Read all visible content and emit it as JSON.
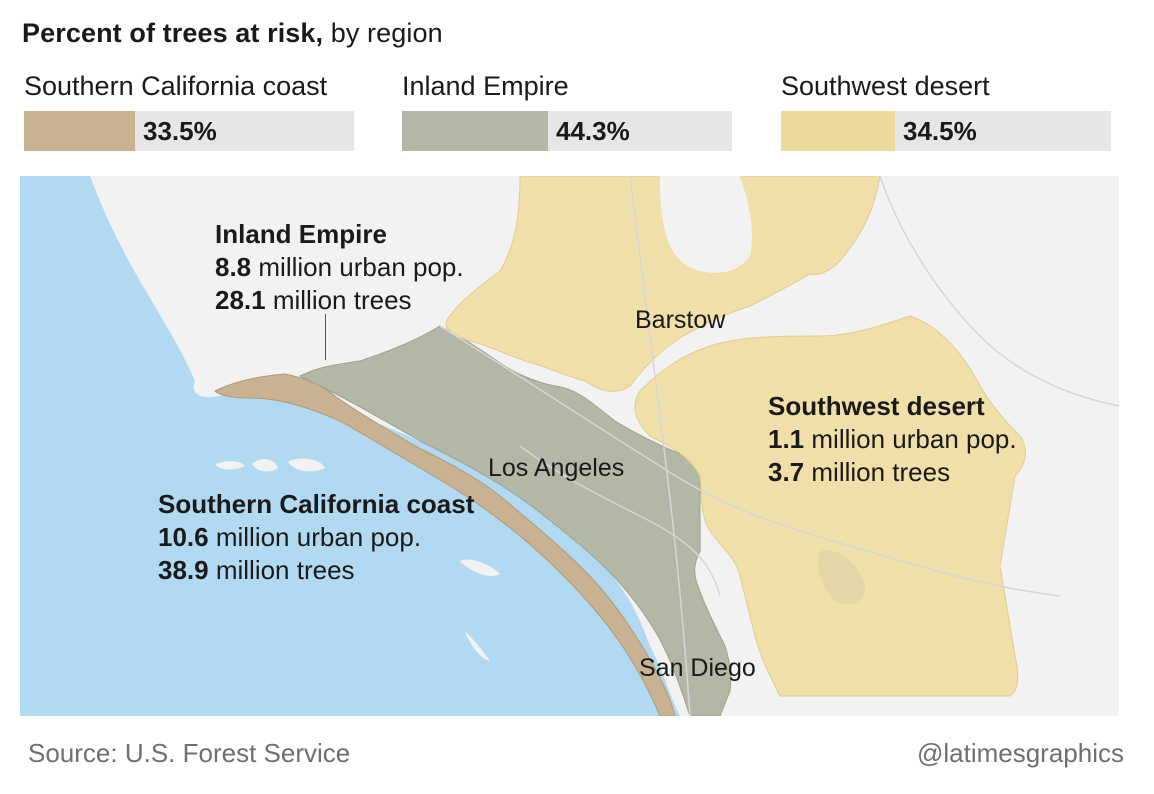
{
  "title": {
    "bold": "Percent of trees at risk,",
    "rest": " by region"
  },
  "legend": [
    {
      "label": "Southern California coast",
      "value": "33.5%",
      "fraction": 0.335,
      "color": "#c9b291"
    },
    {
      "label": "Inland Empire",
      "value": "44.3%",
      "fraction": 0.443,
      "color": "#b3b8a6"
    },
    {
      "label": "Southwest desert",
      "value": "34.5%",
      "fraction": 0.345,
      "color": "#ecd99b"
    }
  ],
  "regions": {
    "inland": {
      "name": "Inland Empire",
      "pop_num": "8.8",
      "pop_text": " million urban pop.",
      "trees_num": "28.1",
      "trees_text": " million trees"
    },
    "coast": {
      "name": "Southern California coast",
      "pop_num": "10.6",
      "pop_text": " million urban pop.",
      "trees_num": "38.9",
      "trees_text": " million trees"
    },
    "desert": {
      "name": "Southwest desert",
      "pop_num": "1.1",
      "pop_text": " million urban pop.",
      "trees_num": "3.7",
      "trees_text": " million trees"
    }
  },
  "cities": {
    "barstow": "Barstow",
    "los_angeles": "Los Angeles",
    "san_diego": "San Diego"
  },
  "colors": {
    "ocean": "#b2d9f2",
    "land": "#f2f2f2",
    "coast": "#c9b291",
    "inland": "#b3b8a6",
    "desert": "#f0dfa8"
  },
  "footer": {
    "source": "Source: U.S. Forest Service",
    "credit": "@latimesgraphics"
  }
}
